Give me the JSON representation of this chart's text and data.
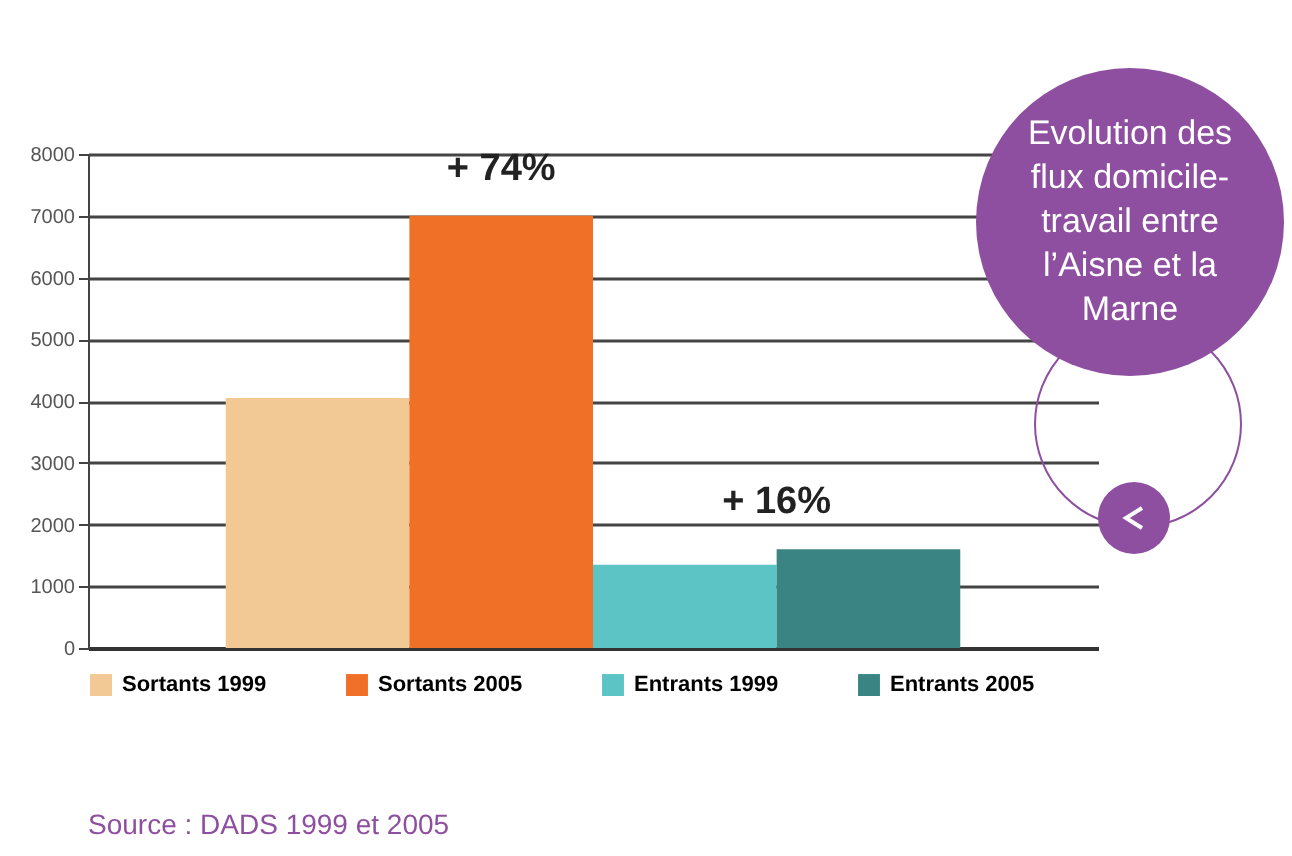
{
  "chart_data": {
    "type": "bar",
    "title": "Evolution des flux domicile-travail entre l’Aisne et la Marne",
    "categories": [
      null,
      null,
      null,
      null
    ],
    "series": [
      {
        "name": "Sortants 1999",
        "color": "#f2c894",
        "values": [
          4050,
          null,
          null,
          null
        ]
      },
      {
        "name": "Sortants 2005",
        "color": "#f07028",
        "values": [
          null,
          7000,
          null,
          null
        ]
      },
      {
        "name": "Entrants 1999",
        "color": "#5cc4c4",
        "values": [
          null,
          null,
          1350,
          null
        ]
      },
      {
        "name": "Entrants 2005",
        "color": "#3a8484",
        "values": [
          null,
          null,
          null,
          1600
        ]
      }
    ],
    "ylim": [
      0,
      8000
    ],
    "yticks": [
      0,
      1000,
      2000,
      3000,
      4000,
      5000,
      6000,
      7000,
      8000
    ],
    "grid": "y",
    "legend": "bottom",
    "tick_labels": "y",
    "annotations": [
      "+ 74%",
      "+ 16%",
      "Source : DADS 1999 et 2005"
    ]
  }
}
